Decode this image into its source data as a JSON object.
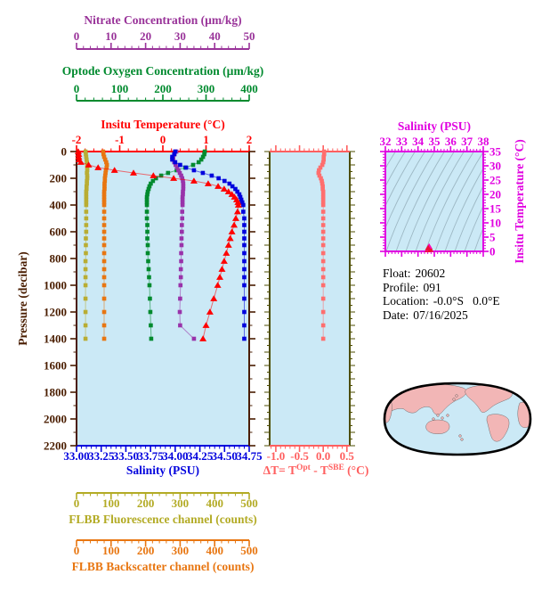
{
  "info": {
    "rows": [
      {
        "label": "Float:",
        "value": "20602"
      },
      {
        "label": "Profile:",
        "value": "091"
      },
      {
        "label": "Location:",
        "value": "-0.0°S   0.0°E"
      },
      {
        "label": "Date:",
        "value": "07/16/2025"
      }
    ]
  },
  "chart_data": [
    {
      "id": "main-profile",
      "type": "line",
      "plot_bg": "#cbe9f6",
      "y_axis": {
        "label": "Pressure (decibar)",
        "range": [
          0,
          2200
        ],
        "tick_labels": [
          "0",
          "200",
          "400",
          "600",
          "800",
          "1000",
          "1200",
          "1400",
          "1600",
          "1800",
          "2000",
          "2200"
        ],
        "tick_step": 200,
        "minor_step": 100,
        "color": "#4a1d00"
      },
      "x_axes": [
        {
          "id": "nitrate",
          "title": "Nitrate Concentration (µm/kg)",
          "color": "#993399",
          "range": [
            0,
            50
          ],
          "ticks": [
            "0",
            "10",
            "20",
            "30",
            "40",
            "50"
          ],
          "minor_step": 2
        },
        {
          "id": "oxygen",
          "title": "Optode Oxygen Concentration (µm/kg)",
          "color": "#008a2e",
          "range": [
            0,
            400
          ],
          "ticks": [
            "0",
            "100",
            "200",
            "300",
            "400"
          ],
          "minor_step": 20
        },
        {
          "id": "temperature",
          "title": "Insitu Temperature (°C)",
          "color": "#ff0000",
          "range": [
            -2,
            2
          ],
          "ticks": [
            "-2",
            "-1",
            "0",
            "1",
            "2"
          ],
          "minor_step": 0.2
        },
        {
          "id": "salinity",
          "title": "Salinity (PSU)",
          "color": "#0000dd",
          "range": [
            33,
            34.75
          ],
          "ticks": [
            "33.00",
            "33.25",
            "33.50",
            "33.75",
            "34.00",
            "34.25",
            "34.50",
            "34.75"
          ],
          "minor_step": 0.05
        },
        {
          "id": "fluorescence",
          "title": "FLBB Fluorescence channel (counts)",
          "color": "#b3ab25",
          "range": [
            0,
            500
          ],
          "ticks": [
            "0",
            "100",
            "200",
            "300",
            "400",
            "500"
          ],
          "minor_step": 20
        },
        {
          "id": "backscatter",
          "title": "FLBB Backscatter channel (counts)",
          "color": "#e87611",
          "range": [
            0,
            500
          ],
          "ticks": [
            "0",
            "100",
            "200",
            "300",
            "400",
            "500"
          ],
          "minor_step": 20
        }
      ],
      "pressures": [
        0,
        20,
        40,
        60,
        80,
        100,
        120,
        140,
        160,
        180,
        200,
        220,
        240,
        260,
        280,
        300,
        320,
        340,
        360,
        380,
        400,
        450,
        500,
        550,
        600,
        650,
        700,
        760,
        820,
        880,
        940,
        1000,
        1100,
        1200,
        1300,
        1400
      ],
      "series": [
        {
          "name": "FLBB Fluorescence",
          "axis": "fluorescence",
          "color": "#b9ad33",
          "marker": "square",
          "values": [
            26,
            27,
            28,
            29,
            30,
            31,
            31,
            31,
            30,
            31,
            31,
            30,
            30,
            29,
            29,
            28,
            28,
            28,
            28,
            28,
            28,
            28,
            28,
            28,
            28,
            27,
            27,
            27,
            26,
            26,
            26,
            26,
            26,
            26,
            26,
            26
          ]
        },
        {
          "name": "FLBB Backscatter",
          "axis": "backscatter",
          "color": "#e87611",
          "marker": "square",
          "values": [
            77,
            78,
            80,
            83,
            86,
            88,
            87,
            85,
            84,
            83,
            82,
            82,
            81,
            81,
            81,
            80,
            80,
            80,
            80,
            80,
            80,
            80,
            80,
            80,
            80,
            80,
            80,
            80,
            80,
            80,
            80,
            80,
            80,
            80,
            80,
            80
          ]
        },
        {
          "name": "Optode Oxygen Concentration",
          "axis": "oxygen",
          "color": "#008a2e",
          "marker": "square",
          "values": [
            297,
            296,
            293,
            289,
            283,
            270,
            252,
            232,
            212,
            196,
            184,
            177,
            172,
            169,
            167,
            165,
            164,
            163,
            163,
            163,
            163,
            163,
            163,
            164,
            164,
            164,
            165,
            165,
            166,
            167,
            168,
            169,
            170,
            171,
            172,
            173
          ]
        },
        {
          "name": "Nitrate Concentration",
          "axis": "nitrate",
          "color": "#9933aa",
          "marker": "square",
          "values": [
            28.9,
            28.4,
            28.0,
            28.0,
            28.3,
            28.7,
            29.1,
            29.5,
            29.9,
            30.3,
            30.6,
            30.8,
            30.9,
            30.9,
            30.9,
            30.8,
            30.8,
            30.7,
            30.7,
            30.7,
            30.7,
            30.6,
            30.6,
            30.5,
            30.5,
            30.4,
            30.4,
            30.3,
            30.3,
            30.2,
            30.2,
            30.1,
            30.0,
            29.9,
            30.0,
            34.0
          ]
        },
        {
          "name": "Salinity",
          "axis": "salinity",
          "color": "#0000dd",
          "marker": "square",
          "values": [
            34.0,
            33.99,
            33.97,
            33.97,
            34.0,
            34.05,
            34.11,
            34.19,
            34.28,
            34.37,
            34.44,
            34.5,
            34.55,
            34.58,
            34.61,
            34.63,
            34.65,
            34.66,
            34.67,
            34.68,
            34.69,
            34.69,
            34.7,
            34.7,
            34.7,
            34.7,
            34.7,
            34.7,
            34.7,
            34.7,
            34.7,
            34.7,
            34.7,
            34.7,
            34.7,
            34.7
          ]
        },
        {
          "name": "Insitu Temperature",
          "axis": "temperature",
          "color": "#ff0000",
          "marker": "triangle",
          "values": [
            -1.96,
            -1.95,
            -1.95,
            -1.94,
            -1.9,
            -1.72,
            -1.5,
            -1.12,
            -0.68,
            -0.22,
            0.25,
            0.72,
            1.05,
            1.28,
            1.42,
            1.52,
            1.6,
            1.66,
            1.71,
            1.74,
            1.75,
            1.73,
            1.69,
            1.65,
            1.6,
            1.56,
            1.52,
            1.47,
            1.42,
            1.37,
            1.32,
            1.27,
            1.18,
            1.09,
            1.0,
            0.93
          ]
        }
      ]
    },
    {
      "id": "delta-t",
      "type": "line",
      "plot_bg": "#cbe9f6",
      "x_axis": {
        "title_parts": [
          "ΔT= T",
          "Opt",
          " - T",
          "SBE",
          " (°C)"
        ],
        "color": "#ff5f5f",
        "range": [
          -1.13,
          0.56
        ],
        "ticks": [
          "-1.0",
          "-0.5",
          "0.0",
          "0.5"
        ],
        "tick_values": [
          -1.0,
          -0.5,
          0.0,
          0.5
        ],
        "minor_step": 0.1
      },
      "side_ticks_color": "#4d4d00",
      "pressures": [
        0,
        20,
        40,
        60,
        80,
        100,
        120,
        140,
        160,
        180,
        200,
        220,
        240,
        260,
        280,
        300,
        320,
        340,
        360,
        380,
        400,
        450,
        500,
        550,
        600,
        650,
        700,
        760,
        820,
        880,
        940,
        1000,
        1100,
        1200,
        1300,
        1400
      ],
      "series": [
        {
          "name": "ΔT",
          "color": "#ff6e6e",
          "marker": "square",
          "values": [
            0.02,
            0.02,
            0.01,
            0.01,
            0.0,
            -0.02,
            -0.06,
            -0.09,
            -0.1,
            -0.08,
            -0.05,
            -0.03,
            -0.02,
            -0.01,
            -0.01,
            0.0,
            0.0,
            0.0,
            0.0,
            0.0,
            0.0,
            0.0,
            0.0,
            0.0,
            0.0,
            0.0,
            0.0,
            0.0,
            0.0,
            0.0,
            0.0,
            0.0,
            0.0,
            0.0,
            0.0,
            0.0
          ]
        }
      ]
    },
    {
      "id": "ts-diagram",
      "type": "scatter",
      "plot_bg": "#cbe9f6",
      "x_axis": {
        "title": "Salinity (PSU)",
        "range": [
          32,
          38
        ],
        "ticks": [
          "32",
          "33",
          "34",
          "35",
          "36",
          "37",
          "38"
        ],
        "minor_step": 0.2,
        "color": "#e000e0"
      },
      "y_axis": {
        "title": "Insitu Temperature (°C)",
        "range": [
          0,
          35
        ],
        "ticks": [
          "0",
          "5",
          "10",
          "15",
          "20",
          "25",
          "30",
          "35"
        ],
        "minor_step": 1,
        "tick_step": 5,
        "color": "#e000e0"
      },
      "contours": {
        "color": "#9db8c4"
      },
      "points": [
        [
          34.6,
          0.5
        ],
        [
          34.65,
          1.0
        ],
        [
          34.7,
          1.5
        ],
        [
          34.72,
          0.9
        ],
        [
          34.76,
          0.6
        ],
        [
          34.68,
          1.8
        ],
        [
          34.62,
          1.2
        ]
      ],
      "point_colors": [
        "#ee1133",
        "#ff00bb"
      ]
    },
    {
      "id": "world-map",
      "type": "map",
      "ocean_color": "#cbe9f6",
      "land_color": "#f2b6b6",
      "outline_color": "#000000"
    }
  ]
}
